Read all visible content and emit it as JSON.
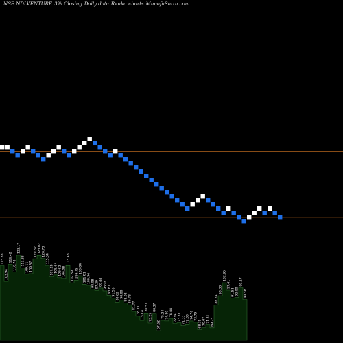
{
  "header": {
    "symbol": "NSE NDLVENTURE",
    "box_size": "3%",
    "closing": "Closing",
    "daily": "Daily data",
    "chart_kind": "Renko",
    "charts": "charts",
    "site": "MunafaSutra.com"
  },
  "colors": {
    "background": "#000000",
    "up_brick": "#ffffff",
    "down_brick": "#1e6fe8",
    "reference_line": "#b5651d",
    "volume_fill": "#062406",
    "volume_stroke": "#2e6b2e",
    "volume_label": "#ffffff"
  },
  "chart_data": {
    "type": "renko",
    "title": "NSE NDLVENTURE 3%~ Closing Daily data Renko charts",
    "bricks": [
      {
        "direction": "up",
        "level": 0
      },
      {
        "direction": "up",
        "level": 0
      },
      {
        "direction": "down",
        "level": -1
      },
      {
        "direction": "down",
        "level": -2
      },
      {
        "direction": "up",
        "level": -1
      },
      {
        "direction": "up",
        "level": 0
      },
      {
        "direction": "down",
        "level": -1
      },
      {
        "direction": "down",
        "level": -2
      },
      {
        "direction": "down",
        "level": -3
      },
      {
        "direction": "up",
        "level": -2
      },
      {
        "direction": "up",
        "level": -1
      },
      {
        "direction": "up",
        "level": 0
      },
      {
        "direction": "down",
        "level": -1
      },
      {
        "direction": "down",
        "level": -2
      },
      {
        "direction": "up",
        "level": -1
      },
      {
        "direction": "up",
        "level": 0
      },
      {
        "direction": "up",
        "level": 1
      },
      {
        "direction": "up",
        "level": 2
      },
      {
        "direction": "down",
        "level": 1
      },
      {
        "direction": "down",
        "level": 0
      },
      {
        "direction": "down",
        "level": -1
      },
      {
        "direction": "down",
        "level": -2
      },
      {
        "direction": "up",
        "level": -1
      },
      {
        "direction": "down",
        "level": -2
      },
      {
        "direction": "down",
        "level": -3
      },
      {
        "direction": "down",
        "level": -4
      },
      {
        "direction": "down",
        "level": -5
      },
      {
        "direction": "down",
        "level": -6
      },
      {
        "direction": "down",
        "level": -7
      },
      {
        "direction": "down",
        "level": -8
      },
      {
        "direction": "down",
        "level": -9
      },
      {
        "direction": "down",
        "level": -10
      },
      {
        "direction": "down",
        "level": -11
      },
      {
        "direction": "down",
        "level": -12
      },
      {
        "direction": "down",
        "level": -13
      },
      {
        "direction": "down",
        "level": -14
      },
      {
        "direction": "down",
        "level": -15
      },
      {
        "direction": "up",
        "level": -14
      },
      {
        "direction": "up",
        "level": -13
      },
      {
        "direction": "up",
        "level": -12
      },
      {
        "direction": "down",
        "level": -13
      },
      {
        "direction": "down",
        "level": -14
      },
      {
        "direction": "down",
        "level": -15
      },
      {
        "direction": "down",
        "level": -16
      },
      {
        "direction": "up",
        "level": -15
      },
      {
        "direction": "down",
        "level": -16
      },
      {
        "direction": "down",
        "level": -17
      },
      {
        "direction": "down",
        "level": -18
      },
      {
        "direction": "up",
        "level": -17
      },
      {
        "direction": "up",
        "level": -16
      },
      {
        "direction": "up",
        "level": -15
      },
      {
        "direction": "down",
        "level": -16
      },
      {
        "direction": "up",
        "level": -15
      },
      {
        "direction": "down",
        "level": -16
      },
      {
        "direction": "down",
        "level": -17
      }
    ],
    "reference_levels": [
      -1,
      -17
    ],
    "volume": {
      "labels": [
        "115.36",
        "103.94",
        "116.42",
        "110.70",
        "123.17",
        "113.88",
        "109.11",
        "109.57",
        "120.52",
        "123.02",
        "120.73",
        "115.54",
        "107.28",
        "108.64",
        "106.62",
        "106.08",
        "115.43",
        "102.89",
        "104.79",
        "108.04",
        "101.81",
        "100.94",
        "98.08",
        "97.29",
        "99.00",
        "96.96",
        "93.67",
        "91.56",
        "88.62",
        "90.00",
        "88.02",
        "86.73",
        "81.77",
        "78.35",
        "75.14",
        "80.57",
        "73.25",
        "80.37",
        "67.62",
        "75.24",
        "74.80",
        "76.66",
        "72.94",
        "73.35",
        "71.33",
        "72.00",
        "74.76",
        "73.79",
        "68.35",
        "70.07",
        "71.81",
        "69.75",
        "86.54",
        "93.30",
        "102.95",
        "97.41",
        "91.52",
        "92.00",
        "99.17",
        "90.58"
      ]
    }
  }
}
